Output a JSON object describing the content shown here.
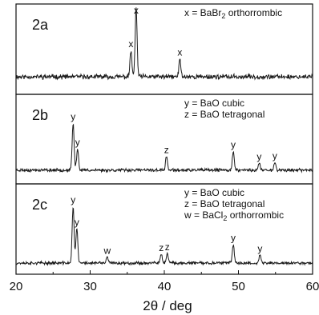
{
  "chart_data": {
    "type": "line",
    "xlabel": "2θ / deg",
    "xlim": [
      20,
      60
    ],
    "xticks": [
      20,
      30,
      40,
      50,
      60
    ],
    "x_tick_labels": [
      "20",
      "30",
      "40",
      "50",
      "60"
    ],
    "line_color": "#1a1a1a",
    "panels": [
      {
        "label": "2a",
        "legend": [
          {
            "symbol": "x",
            "phase": "BaBr",
            "sub": "2",
            "suffix": " orthorrombic"
          }
        ],
        "baseline": 0.3,
        "noise": 0.045,
        "seed": 11,
        "peaks": [
          {
            "x": 35.5,
            "height": 0.3,
            "label": "x"
          },
          {
            "x": 36.2,
            "height": 0.8,
            "label": "x"
          },
          {
            "x": 42.1,
            "height": 0.2,
            "label": "x"
          }
        ]
      },
      {
        "label": "2b",
        "legend": [
          {
            "symbol": "y",
            "phase": "BaO cubic"
          },
          {
            "symbol": "z",
            "phase": "BaO tetragonal"
          }
        ],
        "baseline": 0.18,
        "noise": 0.03,
        "seed": 23,
        "peaks": [
          {
            "x": 27.7,
            "height": 0.55,
            "label": "y"
          },
          {
            "x": 28.3,
            "height": 0.25,
            "label": "y"
          },
          {
            "x": 40.3,
            "height": 0.16,
            "label": "z"
          },
          {
            "x": 49.3,
            "height": 0.22,
            "label": "y"
          },
          {
            "x": 52.8,
            "height": 0.08,
            "label": "y"
          },
          {
            "x": 54.9,
            "height": 0.09,
            "label": "y"
          }
        ]
      },
      {
        "label": "2c",
        "legend": [
          {
            "symbol": "y",
            "phase": "BaO cubic"
          },
          {
            "symbol": "z",
            "phase": "BaO tetragonal"
          },
          {
            "symbol": "w",
            "phase": "BaCl",
            "sub": "2",
            "suffix": " orthorrombic"
          }
        ],
        "baseline": 0.1,
        "noise": 0.028,
        "seed": 37,
        "peaks": [
          {
            "x": 27.7,
            "height": 0.66,
            "label": "y"
          },
          {
            "x": 28.2,
            "height": 0.4,
            "label": "y"
          },
          {
            "x": 32.3,
            "height": 0.07,
            "label": "w"
          },
          {
            "x": 39.6,
            "height": 0.1,
            "label": "z"
          },
          {
            "x": 40.4,
            "height": 0.11,
            "label": "z"
          },
          {
            "x": 49.3,
            "height": 0.22,
            "label": "y"
          },
          {
            "x": 52.9,
            "height": 0.09,
            "label": "y"
          }
        ]
      }
    ]
  }
}
